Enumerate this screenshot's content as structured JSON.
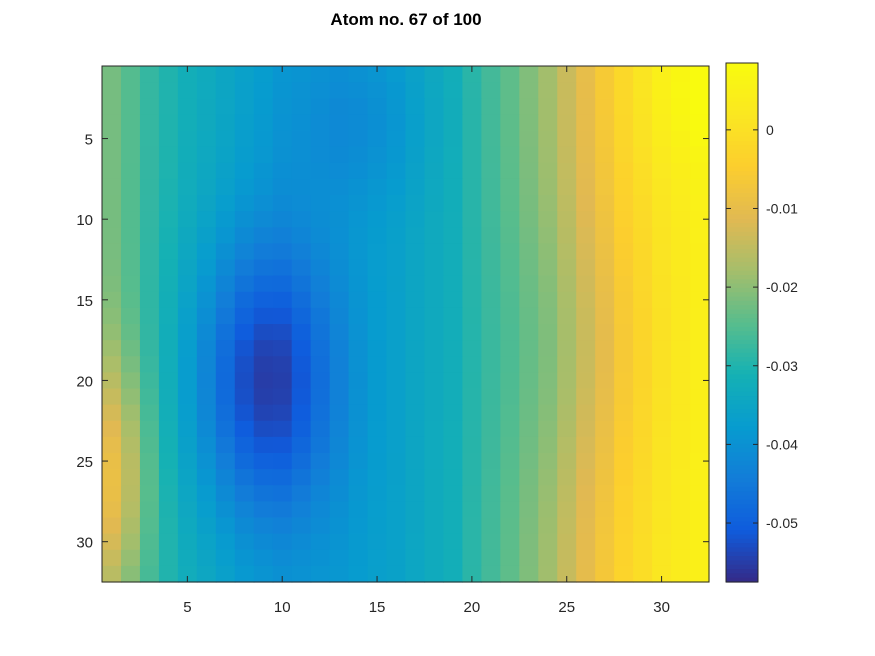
{
  "chart_data": {
    "type": "heatmap",
    "title": "Atom no. 67 of 100",
    "xlabel": "",
    "ylabel": "",
    "nx": 32,
    "ny": 32,
    "xlim": [
      0.5,
      32.5
    ],
    "ylim": [
      0.5,
      32.5
    ],
    "y_direction": "reverse",
    "x_ticks": [
      5,
      10,
      15,
      20,
      25,
      30
    ],
    "y_ticks": [
      5,
      10,
      15,
      20,
      25,
      30
    ],
    "x_tick_labels": [
      "5",
      "10",
      "15",
      "20",
      "25",
      "30"
    ],
    "y_tick_labels": [
      "5",
      "10",
      "15",
      "20",
      "25",
      "30"
    ],
    "colorbar": {
      "clim": [
        -0.0575,
        0.0085
      ],
      "ticks": [
        0,
        -0.01,
        -0.02,
        -0.03,
        -0.04,
        -0.05
      ],
      "tick_labels": [
        "0",
        "-0.01",
        "-0.02",
        "-0.03",
        "-0.04",
        "-0.05"
      ],
      "colormap": "parula",
      "location": "right"
    },
    "value_field": {
      "description_of_source_values": "estimated cell values",
      "components": [
        {
          "kind": "column_profile",
          "x": [
            1,
            3,
            5,
            8,
            10,
            13,
            16,
            19,
            20,
            22,
            24,
            26,
            28,
            30,
            32
          ],
          "values": [
            -0.022,
            -0.028,
            -0.032,
            -0.036,
            -0.038,
            -0.038,
            -0.036,
            -0.032,
            -0.029,
            -0.024,
            -0.018,
            -0.01,
            -0.003,
            0.002,
            0.005
          ]
        },
        {
          "kind": "gaussian",
          "x0": 9,
          "y0": 20,
          "sx": 2.6,
          "sy": 6,
          "amplitude": -0.018
        },
        {
          "kind": "gaussian",
          "x0": 14,
          "y0": 4,
          "sx": 2.5,
          "sy": 3.5,
          "amplitude": -0.004
        },
        {
          "kind": "gaussian",
          "x0": 1,
          "y0": 26,
          "sx": 1.3,
          "sy": 5,
          "amplitude": 0.013
        },
        {
          "kind": "gaussian",
          "x0": 32,
          "y0": 2,
          "sx": 2.5,
          "sy": 3,
          "amplitude": 0.004
        },
        {
          "kind": "gaussian",
          "x0": 26,
          "y0": 18,
          "sx": 3,
          "sy": 6,
          "amplitude": -0.004
        }
      ]
    }
  }
}
